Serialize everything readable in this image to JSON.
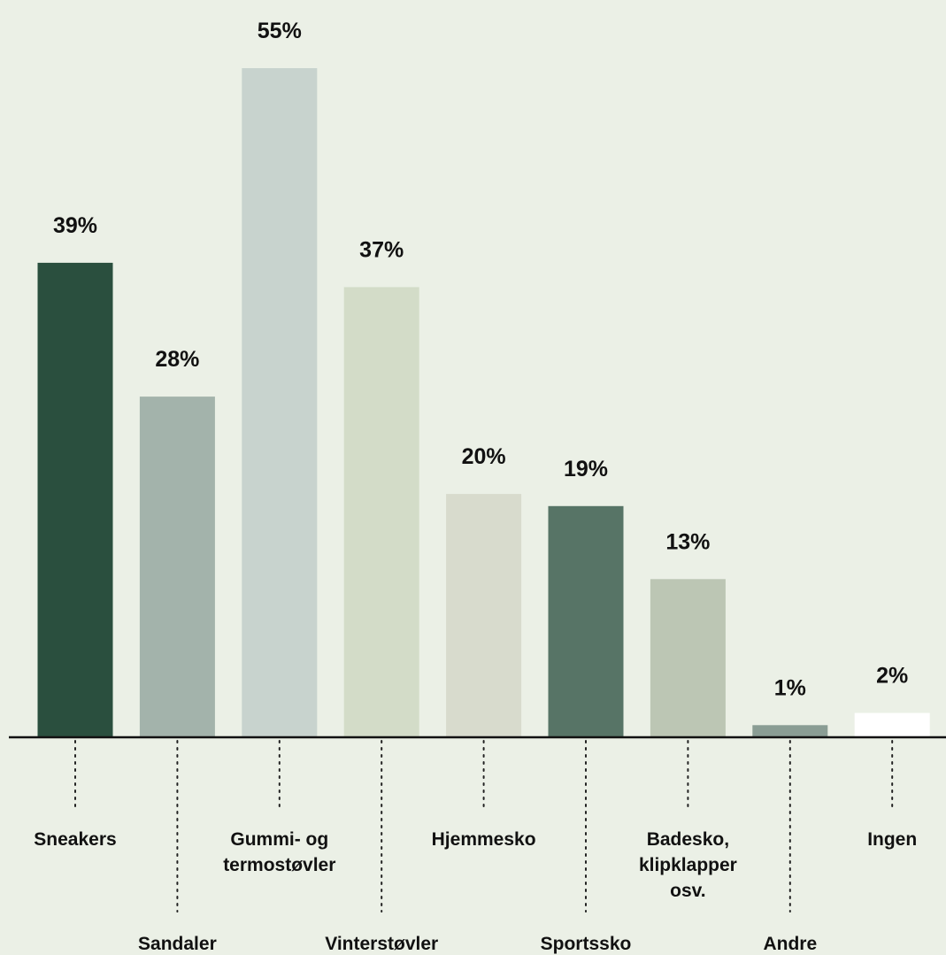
{
  "chart_data": {
    "type": "bar",
    "categories": [
      "Sneakers",
      "Sandaler",
      "Gummi- og termostøvler",
      "Vinterstøvler",
      "Hjemmesko",
      "Sportssko",
      "Badesko, klipklapper osv.",
      "Andre",
      "Ingen"
    ],
    "category_lines": [
      [
        "Sneakers"
      ],
      [
        "Sandaler"
      ],
      [
        "Gummi- og",
        "termostøvler"
      ],
      [
        "Vinterstøvler"
      ],
      [
        "Hjemmesko"
      ],
      [
        "Sportssko"
      ],
      [
        "Badesko,",
        "klipklapper",
        "osv."
      ],
      [
        "Andre"
      ],
      [
        "Ingen"
      ]
    ],
    "values": [
      39,
      28,
      55,
      37,
      20,
      19,
      13,
      1,
      2
    ],
    "value_labels": [
      "39%",
      "28%",
      "55%",
      "37%",
      "20%",
      "19%",
      "13%",
      "1%",
      "2%"
    ],
    "bar_colors": [
      "#2a4f3e",
      "#a3b3ab",
      "#c8d3ce",
      "#d3dcc8",
      "#d8dbcd",
      "#577466",
      "#bcc6b4",
      "#8a9d94",
      "#ffffff"
    ],
    "label_placement": [
      "upper",
      "lower",
      "upper",
      "lower",
      "upper",
      "lower",
      "upper",
      "lower",
      "upper"
    ],
    "title": "",
    "xlabel": "",
    "ylabel": "",
    "ylim": [
      0,
      55
    ],
    "grid": false,
    "legend": "none"
  },
  "colors": {
    "background": "#ebf0e6",
    "axis": "#111111",
    "text": "#111111",
    "leader": "#222222"
  }
}
